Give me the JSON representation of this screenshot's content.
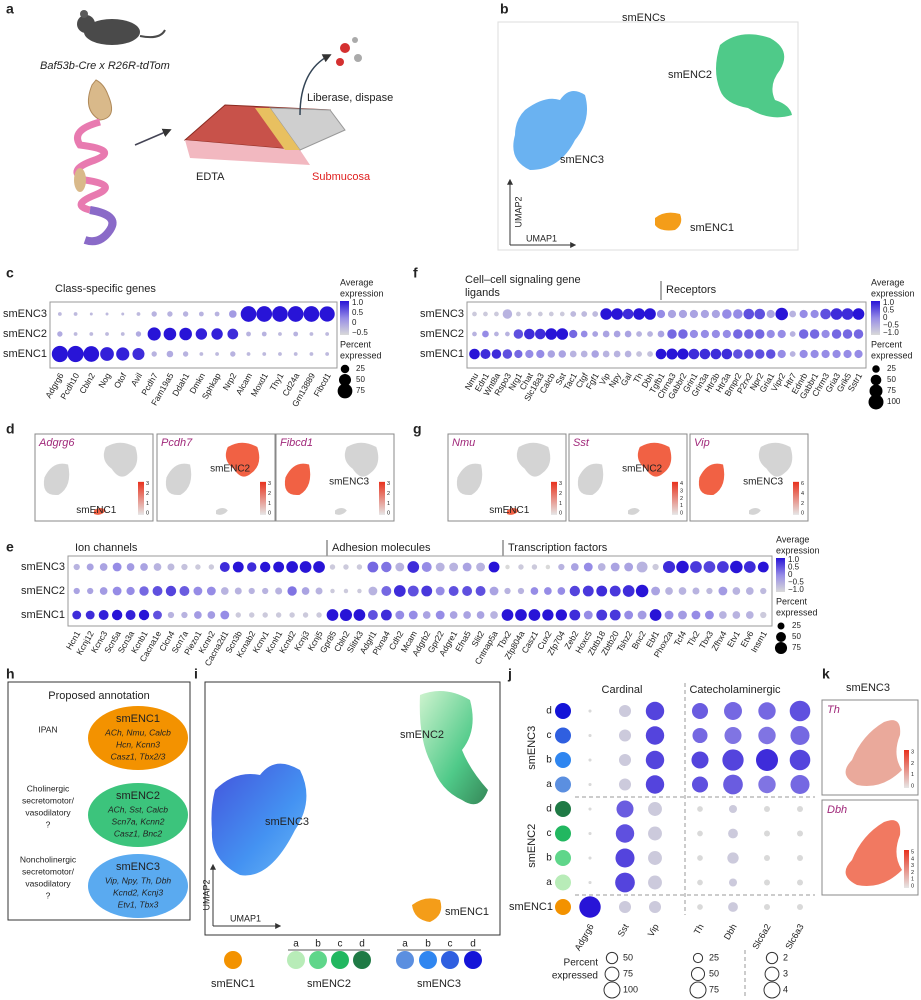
{
  "a": {
    "letter": "a",
    "mouse": "Baf53b-Cre x R26R-tdTom",
    "liberase": "Liberase, dispase",
    "edta": "EDTA",
    "submucosa": "Submucosa"
  },
  "b": {
    "letter": "b",
    "title": "smENCs",
    "smENC2": "smENC2",
    "smENC3": "smENC3",
    "smENC1": "smENC1",
    "xlabel": "UMAP1",
    "ylabel": "UMAP2"
  },
  "c": {
    "letter": "c",
    "title": "Class-specific genes",
    "rows": [
      "smENC3",
      "smENC2",
      "smENC1"
    ],
    "genes": [
      "Adgrg6",
      "Pcdh10",
      "Cbln2",
      "Nog",
      "Otof",
      "Avil",
      "Pcdh7",
      "Fam19a5",
      "Ddah1",
      "Dmkn",
      "Sphkap",
      "Nrp2",
      "Alcam",
      "Moxd1",
      "Thy1",
      "Cd24a",
      "Gm13889",
      "Fibcd1"
    ],
    "pct": [
      [
        5,
        5,
        3,
        3,
        3,
        5,
        10,
        10,
        10,
        8,
        8,
        20,
        85,
        85,
        85,
        85,
        85,
        80
      ],
      [
        10,
        5,
        5,
        5,
        5,
        10,
        60,
        55,
        55,
        45,
        45,
        40,
        8,
        8,
        5,
        8,
        5,
        5
      ],
      [
        90,
        90,
        85,
        65,
        60,
        50,
        10,
        15,
        10,
        5,
        5,
        10,
        5,
        5,
        5,
        5,
        5,
        5
      ]
    ],
    "expr": [
      [
        -0.6,
        -0.6,
        -0.6,
        -0.6,
        -0.6,
        -0.6,
        -0.5,
        -0.5,
        -0.5,
        -0.5,
        -0.5,
        -0.2,
        1,
        1,
        1,
        1,
        1,
        1
      ],
      [
        -0.4,
        -0.6,
        -0.6,
        -0.6,
        -0.6,
        -0.4,
        1,
        1,
        1,
        0.9,
        0.9,
        0.8,
        -0.5,
        -0.5,
        -0.6,
        -0.5,
        -0.6,
        -0.6
      ],
      [
        1,
        1,
        1,
        0.9,
        0.9,
        0.8,
        -0.5,
        -0.4,
        -0.5,
        -0.6,
        -0.6,
        -0.5,
        -0.6,
        -0.6,
        -0.6,
        -0.6,
        -0.6,
        -0.6
      ]
    ],
    "legend": {
      "expr_title": [
        "Average",
        "expression"
      ],
      "expr_labels": [
        "1.0",
        "0.5",
        "0",
        "−0.5"
      ],
      "pct_title": [
        "Percent",
        "expressed"
      ],
      "pct_ticks": [
        25,
        50,
        75
      ]
    }
  },
  "f": {
    "letter": "f",
    "title": [
      "Cell–cell signaling gene",
      "ligands"
    ],
    "receptors": "Receptors",
    "rows": [
      "smENC3",
      "smENC2",
      "smENC1"
    ],
    "genes": [
      "Nmu",
      "Edn1",
      "Wnt8a",
      "Rspo3",
      "Nrg1",
      "Chat",
      "Slc18a3",
      "Calcb",
      "Sst",
      "Tac1",
      "Ctgf",
      "Fgf1",
      "Vip",
      "Npy",
      "Gal",
      "Th",
      "Dbh",
      "Tgfb1",
      "Chrna3",
      "Gabbr2",
      "Grin1",
      "Grin3a",
      "Htr3b",
      "Htr3a",
      "Bmpr2",
      "P2rx2",
      "Npr2",
      "Gria1",
      "Vipr2",
      "Htr7",
      "Ednrb",
      "Gabbr1",
      "Chrm3",
      "Gria3",
      "Grik5",
      "Sstr1"
    ],
    "pct": [
      [
        10,
        10,
        10,
        40,
        10,
        10,
        10,
        10,
        10,
        15,
        15,
        15,
        60,
        60,
        50,
        60,
        60,
        30,
        30,
        30,
        30,
        30,
        30,
        40,
        40,
        50,
        50,
        30,
        70,
        20,
        30,
        30,
        50,
        60,
        60,
        60
      ],
      [
        10,
        20,
        10,
        10,
        40,
        50,
        50,
        60,
        60,
        30,
        20,
        15,
        20,
        20,
        20,
        15,
        15,
        20,
        40,
        40,
        30,
        30,
        30,
        30,
        40,
        40,
        40,
        30,
        30,
        15,
        40,
        40,
        30,
        40,
        40,
        40
      ],
      [
        50,
        45,
        40,
        40,
        30,
        30,
        30,
        25,
        25,
        20,
        20,
        25,
        20,
        20,
        20,
        15,
        15,
        50,
        55,
        55,
        50,
        50,
        50,
        50,
        40,
        40,
        40,
        40,
        30,
        15,
        30,
        30,
        30,
        30,
        30,
        30
      ]
    ],
    "expr": [
      [
        -0.8,
        -0.8,
        -0.8,
        -0.5,
        -0.8,
        -0.8,
        -0.8,
        -0.8,
        -0.8,
        -0.6,
        -0.6,
        -0.6,
        1,
        1,
        0.8,
        1,
        1,
        0,
        -0.3,
        -0.3,
        -0.3,
        -0.3,
        -0.3,
        0,
        0,
        0.5,
        0.5,
        -0.3,
        1,
        -0.5,
        0,
        0,
        0.5,
        0.8,
        0.8,
        1
      ],
      [
        -0.5,
        0,
        -0.5,
        -0.5,
        0.5,
        0.8,
        0.8,
        1,
        1,
        0.3,
        0,
        -0.3,
        -0.3,
        -0.3,
        -0.3,
        -0.5,
        -0.5,
        -0.3,
        0.3,
        0.3,
        0,
        0,
        0,
        0,
        0.3,
        0.3,
        0.3,
        0,
        0,
        -0.5,
        0.3,
        0.3,
        0,
        0.3,
        0.3,
        0.3
      ],
      [
        1,
        0.8,
        0.8,
        0.5,
        0.3,
        0,
        0,
        -0.3,
        -0.3,
        -0.5,
        -0.5,
        -0.3,
        -0.5,
        -0.5,
        -0.5,
        -0.7,
        -0.7,
        1,
        1,
        1,
        0.8,
        0.8,
        0.8,
        0.8,
        0.5,
        0.5,
        0.5,
        0.5,
        0,
        -0.5,
        0,
        0,
        0,
        0,
        0,
        0
      ]
    ],
    "legend": {
      "expr_title": [
        "Average",
        "expression"
      ],
      "expr_labels": [
        "1.0",
        "0.5",
        "0",
        "−0.5",
        "−1.0"
      ],
      "pct_title": [
        "Percent",
        "expressed"
      ],
      "pct_ticks": [
        25,
        50,
        75,
        100
      ]
    }
  },
  "d": {
    "letter": "d",
    "plots": [
      {
        "gene": "Adgrg6",
        "label": "smENC1",
        "scale": [
          "3",
          "2",
          "1",
          "0"
        ]
      },
      {
        "gene": "Pcdh7",
        "label": "smENC2",
        "scale": [
          "3",
          "2",
          "1",
          "0"
        ]
      },
      {
        "gene": "Fibcd1",
        "label": "smENC3",
        "scale": [
          "3",
          "2",
          "1",
          "0"
        ]
      }
    ]
  },
  "g": {
    "letter": "g",
    "plots": [
      {
        "gene": "Nmu",
        "label": "smENC1",
        "scale": [
          "3",
          "2",
          "1",
          "0"
        ]
      },
      {
        "gene": "Sst",
        "label": "smENC2",
        "scale": [
          "4",
          "3",
          "2",
          "1",
          "0"
        ]
      },
      {
        "gene": "Vip",
        "label": "smENC3",
        "scale": [
          "6",
          "4",
          "2",
          "0"
        ]
      }
    ]
  },
  "e": {
    "letter": "e",
    "sections": [
      "Ion channels",
      "Adhesion molecules",
      "Transcription factors"
    ],
    "rows": [
      "smENC3",
      "smENC2",
      "smENC1"
    ],
    "genes": [
      "Hcn1",
      "Kcnj12",
      "Kcnc3",
      "Scn5a",
      "Scn3a",
      "Kcnb1",
      "Cacna1e",
      "Clcn4",
      "Scn7a",
      "Piezo1",
      "Kcnn2",
      "Cacna2d1",
      "Scn3b",
      "Kcnab2",
      "Kcnv1",
      "Kcnh1",
      "Kcnd2",
      "Kcnj3",
      "Kcnj5",
      "Gpr85",
      "Cbln2",
      "Slitrk3",
      "Adgrl1",
      "Plxna4",
      "Cdh2",
      "Mcam",
      "Adgrb2",
      "Gpr22",
      "Adgre1",
      "Efna5",
      "Slit2",
      "Cntnap5a",
      "Tbx2",
      "Zfp804a",
      "Casz1",
      "Cux2",
      "Zfp704",
      "Zeb2",
      "Hoxc5",
      "Zbtb18",
      "Zbtb20",
      "Tshz2",
      "Bnc2",
      "Ebf1",
      "Phox2a",
      "Tcf4",
      "Tlx2",
      "Tbx3",
      "Zfhx4",
      "Etv1",
      "Etv6",
      "Insm1"
    ],
    "pct": [
      [
        20,
        25,
        30,
        40,
        30,
        30,
        30,
        25,
        20,
        15,
        15,
        50,
        60,
        45,
        55,
        60,
        70,
        70,
        70,
        15,
        15,
        15,
        60,
        55,
        40,
        70,
        50,
        40,
        40,
        40,
        40,
        60,
        10,
        15,
        15,
        10,
        20,
        30,
        40,
        30,
        40,
        40,
        60,
        20,
        75,
        80,
        70,
        70,
        70,
        80,
        70,
        60
      ],
      [
        20,
        20,
        30,
        40,
        35,
        45,
        50,
        55,
        50,
        40,
        40,
        30,
        25,
        20,
        20,
        25,
        45,
        30,
        25,
        10,
        10,
        10,
        40,
        50,
        70,
        60,
        60,
        40,
        50,
        50,
        50,
        40,
        20,
        20,
        30,
        30,
        30,
        55,
        60,
        60,
        60,
        70,
        80,
        40,
        30,
        30,
        25,
        20,
        40,
        30,
        30,
        20
      ],
      [
        40,
        40,
        50,
        55,
        50,
        55,
        40,
        20,
        20,
        30,
        30,
        40,
        15,
        15,
        15,
        15,
        15,
        15,
        15,
        70,
        75,
        70,
        50,
        60,
        40,
        40,
        30,
        40,
        30,
        30,
        30,
        30,
        70,
        70,
        70,
        65,
        65,
        60,
        40,
        60,
        60,
        40,
        40,
        70,
        40,
        40,
        40,
        40,
        30,
        30,
        30,
        20
      ]
    ],
    "expr": [
      [
        -0.5,
        -0.3,
        -0.3,
        0,
        -0.2,
        -0.3,
        -0.5,
        -0.6,
        -0.7,
        -0.8,
        -0.8,
        0.8,
        1,
        0.8,
        1,
        1,
        1,
        1,
        1,
        -0.8,
        -0.8,
        -0.8,
        0.3,
        0.2,
        -0.5,
        0.8,
        0,
        -0.5,
        -0.5,
        -0.3,
        -0.5,
        1,
        -1,
        -0.8,
        -0.8,
        -1,
        -0.5,
        -0.3,
        0,
        -0.5,
        -0.3,
        -0.3,
        -0.5,
        -0.8,
        0.8,
        1,
        0.7,
        0.6,
        0.7,
        1,
        0.8,
        1
      ],
      [
        -0.3,
        -0.3,
        -0.2,
        0,
        0,
        0.3,
        0.5,
        0.6,
        0.4,
        0,
        0,
        -0.5,
        -0.5,
        -0.5,
        -0.5,
        -0.5,
        0.2,
        -0.3,
        -0.5,
        -0.8,
        -0.8,
        -0.8,
        -0.5,
        0.3,
        0.8,
        0.5,
        0.7,
        0,
        0.5,
        0.5,
        0.5,
        -0.3,
        -0.5,
        -0.5,
        0,
        0,
        0,
        0.6,
        0.7,
        0.8,
        0.7,
        0.8,
        1,
        -0.3,
        -0.5,
        -0.5,
        -0.5,
        -0.6,
        -0.2,
        -0.5,
        -0.5,
        -0.6
      ],
      [
        0.8,
        0.8,
        0.9,
        1,
        0.9,
        1,
        0.5,
        -0.5,
        -0.5,
        -0.2,
        -0.2,
        0,
        -0.8,
        -0.8,
        -0.8,
        -0.8,
        -0.8,
        -0.8,
        -0.8,
        1,
        1,
        1,
        0.5,
        0.8,
        0,
        0,
        -0.3,
        0,
        -0.3,
        -0.3,
        -0.3,
        -0.5,
        1,
        1,
        1,
        1,
        1,
        0.8,
        0,
        0.7,
        0.7,
        0,
        -0.2,
        1,
        0,
        -0.2,
        0,
        0,
        -0.5,
        -0.5,
        -0.5,
        -0.8
      ]
    ],
    "legend": {
      "expr_title": [
        "Average",
        "expression"
      ],
      "expr_labels": [
        "1.0",
        "0.5",
        "0",
        "−0.5",
        "−1.0"
      ],
      "pct_title": [
        "Percent",
        "expressed"
      ],
      "pct_ticks": [
        25,
        50,
        75
      ]
    }
  },
  "h": {
    "letter": "h",
    "title": "Proposed annotation",
    "groups": [
      {
        "role": [
          "IPAN"
        ],
        "name": "smENC1",
        "genes": [
          "ACh, Nmu, Calcb",
          "Hcn, Kcnn3",
          "Casz1, Tbx2/3"
        ],
        "color": "#f39200"
      },
      {
        "role": [
          "Cholinergic",
          "secretomotor/",
          "vasodilatory",
          "?"
        ],
        "name": "smENC2",
        "genes": [
          "ACh, Sst, Calcb",
          "Scn7a, Kcnn2",
          "Casz1, Bnc2"
        ],
        "color": "#3cc47c"
      },
      {
        "role": [
          "Noncholinergic",
          "secretomotor/",
          "vasodilatory",
          "?"
        ],
        "name": "smENC3",
        "genes": [
          "Vip, Npy, Th, Dbh",
          "Kcnd2, Kcnj3",
          "Etv1, Tbx3"
        ],
        "color": "#5aaaf0"
      }
    ]
  },
  "i": {
    "letter": "i",
    "smENC2": "smENC2",
    "smENC3": "smENC3",
    "smENC1": "smENC1",
    "xlabel": "UMAP1",
    "ylabel": "UMAP2",
    "legend": [
      {
        "name": "smENC1",
        "colors": [
          "#f39200"
        ]
      },
      {
        "name": "smENC2",
        "subs": [
          "a",
          "b",
          "c",
          "d"
        ],
        "colors": [
          "#b8ecb8",
          "#5fd68a",
          "#22b760",
          "#1f7a45"
        ]
      },
      {
        "name": "smENC3",
        "subs": [
          "a",
          "b",
          "c",
          "d"
        ],
        "colors": [
          "#5b8fe0",
          "#2f86f0",
          "#2f5fe0",
          "#1414d8"
        ]
      }
    ]
  },
  "j": {
    "letter": "j",
    "headers": [
      "Cardinal",
      "Catecholaminergic"
    ],
    "row_groups": [
      {
        "name": "smENC3",
        "subs": [
          "d",
          "c",
          "b",
          "a"
        ],
        "colors": [
          "#1414d8",
          "#2f5fe0",
          "#2f86f0",
          "#5b8fe0"
        ]
      },
      {
        "name": "smENC2",
        "subs": [
          "d",
          "c",
          "b",
          "a"
        ],
        "colors": [
          "#1f7a45",
          "#22b760",
          "#5fd68a",
          "#b8ecb8"
        ]
      },
      {
        "name": "smENC1",
        "subs": [
          ""
        ],
        "colors": [
          "#f39200"
        ]
      }
    ],
    "pct_title": [
      "Percent",
      "expressed"
    ],
    "groups": [
      {
        "genes": [
          "Adgrg6",
          "Sst",
          "Vip"
        ],
        "ticks": [
          50,
          75,
          100
        ],
        "pct": [
          [
            2,
            30,
            70
          ],
          [
            2,
            30,
            70
          ],
          [
            2,
            30,
            70
          ],
          [
            2,
            30,
            70
          ],
          [
            2,
            60,
            40
          ],
          [
            2,
            70,
            40
          ],
          [
            2,
            75,
            40
          ],
          [
            2,
            80,
            40
          ],
          [
            95,
            30,
            30
          ]
        ],
        "expr": [
          [
            -1,
            -0.8,
            0.6
          ],
          [
            -1,
            -0.8,
            0.6
          ],
          [
            -1,
            -0.8,
            0.6
          ],
          [
            -1,
            -0.8,
            0.6
          ],
          [
            -1,
            0.4,
            -0.8
          ],
          [
            -1,
            0.5,
            -0.8
          ],
          [
            -1,
            0.6,
            -0.8
          ],
          [
            -1,
            0.6,
            -0.8
          ],
          [
            1,
            -0.8,
            -0.8
          ]
        ]
      },
      {
        "genes": [
          "Th",
          "Dbh"
        ],
        "ticks": [
          25,
          50,
          75
        ],
        "pct": [
          [
            40,
            50
          ],
          [
            35,
            45
          ],
          [
            45,
            70
          ],
          [
            40,
            60
          ],
          [
            5,
            10
          ],
          [
            5,
            15
          ],
          [
            5,
            20
          ],
          [
            5,
            10
          ],
          [
            5,
            15
          ]
        ],
        "expr": [
          [
            0.4,
            0.3
          ],
          [
            0.3,
            0.2
          ],
          [
            0.6,
            0.6
          ],
          [
            0.5,
            0.4
          ],
          [
            -1,
            -0.8
          ],
          [
            -1,
            -0.8
          ],
          [
            -1,
            -0.8
          ],
          [
            -1,
            -0.8
          ],
          [
            -1,
            -0.8
          ]
        ]
      },
      {
        "genes": [
          "Slc6a2",
          "Slc6a3"
        ],
        "ticks": [
          2,
          3,
          4
        ],
        "pct": [
          [
            2.5,
            3.5
          ],
          [
            2.5,
            3
          ],
          [
            4,
            3.5
          ],
          [
            2.5,
            3
          ],
          [
            0.3,
            0.3
          ],
          [
            0.3,
            0.3
          ],
          [
            0.3,
            0.3
          ],
          [
            0.3,
            0.3
          ],
          [
            0.3,
            0.3
          ]
        ],
        "expr": [
          [
            0.3,
            0.5
          ],
          [
            0.2,
            0.3
          ],
          [
            0.8,
            0.6
          ],
          [
            0.2,
            0.3
          ],
          [
            -1,
            -1
          ],
          [
            -1,
            -1
          ],
          [
            -1,
            -1
          ],
          [
            -1,
            -1
          ],
          [
            -1,
            -1
          ]
        ]
      }
    ]
  },
  "k": {
    "letter": "k",
    "title": "smENC3",
    "plots": [
      {
        "gene": "Th",
        "scale": [
          "3",
          "2",
          "1",
          "0"
        ]
      },
      {
        "gene": "Dbh",
        "scale": [
          "5",
          "4",
          "3",
          "2",
          "1",
          "0"
        ]
      }
    ]
  }
}
